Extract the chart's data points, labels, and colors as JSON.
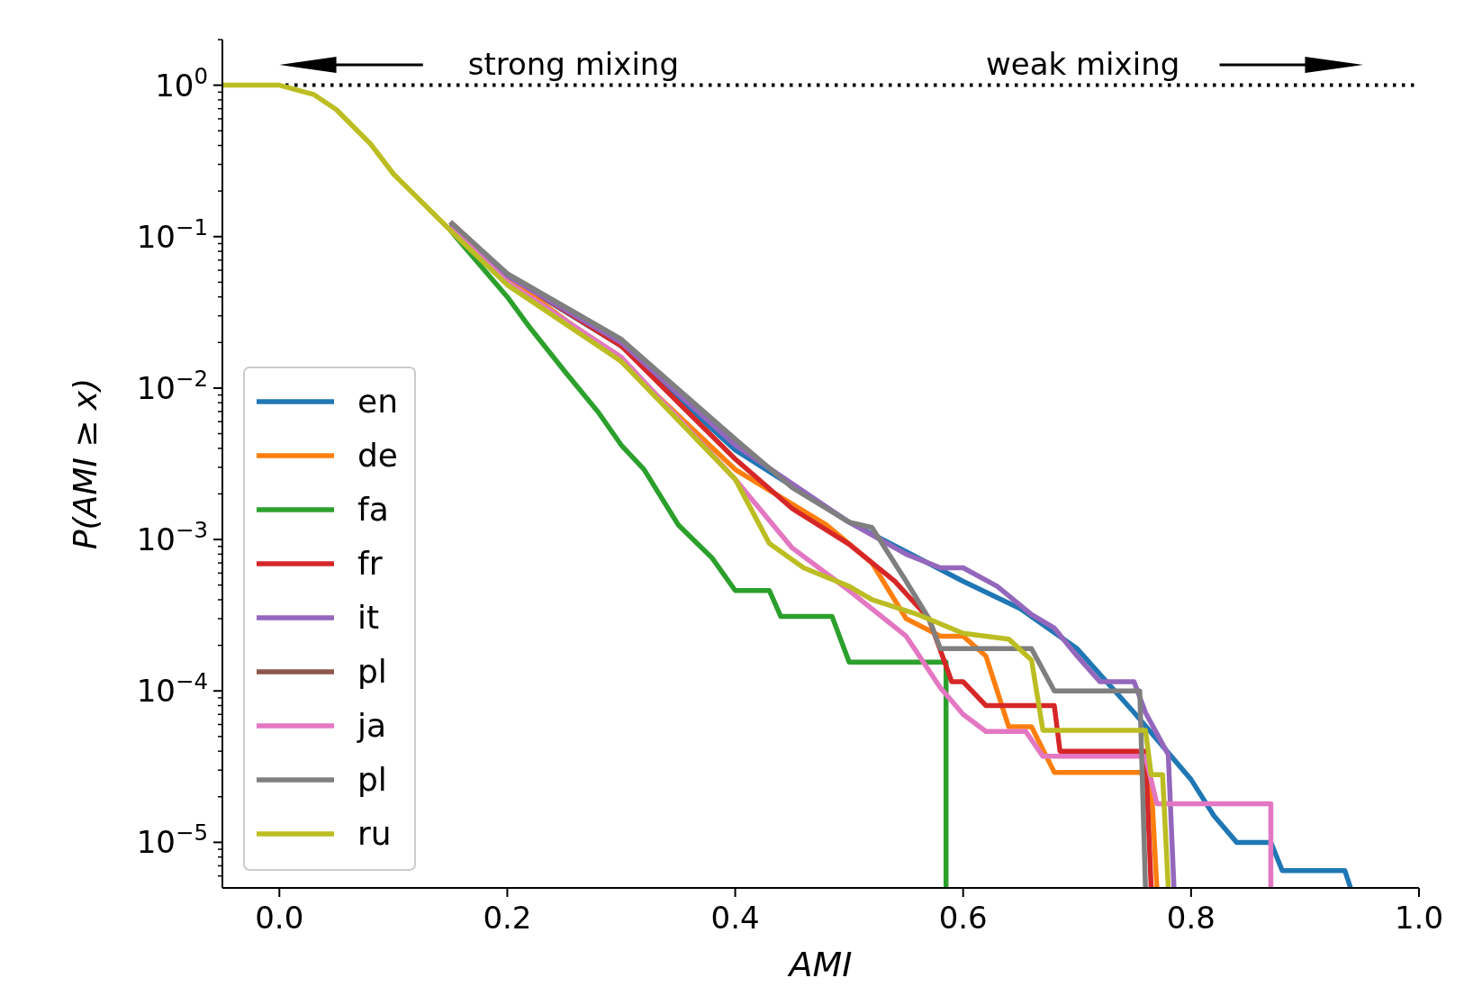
{
  "chart_data": {
    "type": "line",
    "xlabel": "AMI",
    "ylabel": "P(AMI ≥ x)",
    "annotations": [
      "strong mixing",
      "weak mixing"
    ],
    "log": "y",
    "legend": "bottom left",
    "line_style": "solid",
    "xlim": [
      -0.05,
      1.0
    ],
    "xticks": [
      {
        "value": 0,
        "label": "0.0"
      },
      0.2,
      0.4,
      0.6,
      0.8,
      {
        "value": 1,
        "label": "1.0"
      }
    ],
    "ylim": [
      5e-06,
      2
    ],
    "yticks": [
      {
        "value": 1,
        "label": "10$^{0}$"
      },
      {
        "value": 0.1,
        "label": "10$^{−1}$"
      },
      {
        "value": 0.01,
        "label": "10$^{−2}$"
      },
      {
        "value": 0.001,
        "label": "10$^{−3}$"
      },
      {
        "value": 0.0001,
        "label": "10$^{−4}$"
      },
      {
        "value": 1e-05,
        "label": "10$^{−5}$"
      },
      {
        "value": 2,
        "label": null
      },
      {
        "value": 0.9,
        "label": null
      },
      {
        "value": 0.8,
        "label": null
      },
      {
        "value": 0.7,
        "label": null
      },
      {
        "value": 0.6,
        "label": null
      },
      {
        "value": 0.5,
        "label": null
      },
      {
        "value": 0.4,
        "label": null
      },
      {
        "value": 0.3,
        "label": null
      },
      {
        "value": 0.2,
        "label": null
      },
      {
        "value": 0.09,
        "label": null
      },
      {
        "value": 0.08,
        "label": null
      },
      {
        "value": 0.07,
        "label": null
      },
      {
        "value": 0.06,
        "label": null
      },
      {
        "value": 0.05,
        "label": null
      },
      {
        "value": 0.04,
        "label": null
      },
      {
        "value": 0.03,
        "label": null
      },
      {
        "value": 0.02,
        "label": null
      },
      {
        "value": 0.009,
        "label": null
      },
      {
        "value": 0.008,
        "label": null
      },
      {
        "value": 0.007,
        "label": null
      },
      {
        "value": 0.006,
        "label": null
      },
      {
        "value": 0.005,
        "label": null
      },
      {
        "value": 0.004,
        "label": null
      },
      {
        "value": 0.003,
        "label": null
      },
      {
        "value": 0.002,
        "label": null
      },
      {
        "value": 0.0009,
        "label": null
      },
      {
        "value": 0.0008,
        "label": null
      },
      {
        "value": 0.0007,
        "label": null
      },
      {
        "value": 0.0006,
        "label": null
      },
      {
        "value": 0.0005,
        "label": null
      },
      {
        "value": 0.0004,
        "label": null
      },
      {
        "value": 0.0003,
        "label": null
      },
      {
        "value": 0.0002,
        "label": null
      },
      {
        "value": 9e-05,
        "label": null
      },
      {
        "value": 8e-05,
        "label": null
      },
      {
        "value": 7e-05,
        "label": null
      },
      {
        "value": 6e-05,
        "label": null
      },
      {
        "value": 5e-05,
        "label": null
      },
      {
        "value": 4e-05,
        "label": null
      },
      {
        "value": 3e-05,
        "label": null
      },
      {
        "value": 2e-05,
        "label": null
      },
      {
        "value": 9e-06,
        "label": null
      },
      {
        "value": 8e-06,
        "label": null
      },
      {
        "value": 7e-06,
        "label": null
      },
      {
        "value": 6e-06,
        "label": null
      }
    ],
    "ref_lines": [
      {
        "axis": "y",
        "value": 1,
        "label": null,
        "color": "#000000",
        "line_style": "dotted"
      }
    ],
    "series": [
      {
        "name": "en",
        "color": "#1f77b4",
        "x": [
          0.15,
          0.2,
          0.3,
          0.4,
          0.5,
          0.6,
          0.65,
          0.7,
          0.75,
          0.8,
          0.82,
          0.84,
          0.87,
          0.88,
          0.935,
          0.94
        ],
        "values": [
          0.12,
          0.055,
          0.019,
          0.0039,
          0.0013,
          0.00053,
          0.00035,
          0.00019,
          7.2e-05,
          2.6e-05,
          1.5e-05,
          1e-05,
          1e-05,
          6.5e-06,
          6.5e-06,
          5e-06
        ]
      },
      {
        "name": "de",
        "color": "#ff7f0e",
        "x": [
          0.15,
          0.2,
          0.3,
          0.4,
          0.48,
          0.52,
          0.55,
          0.58,
          0.6,
          0.62,
          0.64,
          0.66,
          0.68,
          0.755,
          0.765,
          0.77
        ],
        "values": [
          0.12,
          0.054,
          0.015,
          0.0029,
          0.00125,
          0.0007,
          0.0003,
          0.00023,
          0.00023,
          0.00017,
          5.8e-05,
          5.8e-05,
          2.9e-05,
          2.9e-05,
          2.5e-05,
          5e-06
        ]
      },
      {
        "name": "fa",
        "color": "#2ca02c",
        "x": [
          0.15,
          0.2,
          0.22,
          0.25,
          0.28,
          0.3,
          0.32,
          0.35,
          0.38,
          0.4,
          0.43,
          0.44,
          0.485,
          0.5,
          0.585,
          0.585
        ],
        "values": [
          0.11,
          0.04,
          0.025,
          0.013,
          0.0069,
          0.0042,
          0.0029,
          0.00125,
          0.00075,
          0.00046,
          0.00046,
          0.00031,
          0.00031,
          0.000155,
          0.000155,
          5e-06
        ]
      },
      {
        "name": "fr",
        "color": "#d62728",
        "x": [
          0.15,
          0.2,
          0.3,
          0.4,
          0.45,
          0.5,
          0.54,
          0.57,
          0.59,
          0.6,
          0.62,
          0.68,
          0.685,
          0.76,
          0.765
        ],
        "values": [
          0.125,
          0.056,
          0.019,
          0.0034,
          0.0016,
          0.00093,
          0.00053,
          0.0003,
          0.000115,
          0.000115,
          8e-05,
          8e-05,
          4e-05,
          4e-05,
          5e-06
        ]
      },
      {
        "name": "it",
        "color": "#9467bd",
        "x": [
          0.15,
          0.2,
          0.3,
          0.4,
          0.5,
          0.55,
          0.58,
          0.6,
          0.63,
          0.66,
          0.68,
          0.7,
          0.72,
          0.75,
          0.76,
          0.78,
          0.785
        ],
        "values": [
          0.12,
          0.055,
          0.02,
          0.0042,
          0.0013,
          0.0008,
          0.00065,
          0.00065,
          0.00049,
          0.00032,
          0.00026,
          0.00017,
          0.000115,
          0.000115,
          7.2e-05,
          3.8e-05,
          5e-06
        ]
      },
      {
        "name": "pl",
        "color": "#8c564b"
      },
      {
        "name": "ja",
        "color": "#e377c2",
        "x": [
          0.15,
          0.2,
          0.3,
          0.4,
          0.45,
          0.5,
          0.55,
          0.58,
          0.6,
          0.62,
          0.655,
          0.67,
          0.76,
          0.77,
          0.87,
          0.87
        ],
        "values": [
          0.115,
          0.05,
          0.016,
          0.0025,
          0.00088,
          0.00046,
          0.00023,
          0.000105,
          7e-05,
          5.4e-05,
          5.4e-05,
          3.7e-05,
          3.7e-05,
          1.8e-05,
          1.8e-05,
          5e-06
        ]
      },
      {
        "name": "pl",
        "color": "#7f7f7f",
        "x": [
          0.15,
          0.2,
          0.3,
          0.4,
          0.45,
          0.5,
          0.52,
          0.55,
          0.57,
          0.58,
          0.66,
          0.68,
          0.755,
          0.76
        ],
        "values": [
          0.125,
          0.057,
          0.021,
          0.0046,
          0.0022,
          0.0013,
          0.0012,
          0.00053,
          0.0003,
          0.00019,
          0.00019,
          0.0001,
          0.0001,
          5e-06
        ]
      },
      {
        "name": "ru",
        "color": "#bcbd22",
        "x": [
          -0.05,
          0,
          0.03,
          0.05,
          0.08,
          0.1,
          0.15,
          0.2,
          0.3,
          0.4,
          0.43,
          0.46,
          0.5,
          0.52,
          0.56,
          0.6,
          0.64,
          0.66,
          0.67,
          0.76,
          0.765,
          0.775,
          0.78
        ],
        "values": [
          1,
          1,
          0.87,
          0.69,
          0.41,
          0.26,
          0.11,
          0.048,
          0.015,
          0.0025,
          0.00094,
          0.00065,
          0.00049,
          0.0004,
          0.00032,
          0.00024,
          0.00022,
          0.00016,
          5.5e-05,
          5.5e-05,
          2.8e-05,
          2.8e-05,
          5e-06
        ]
      }
    ]
  }
}
